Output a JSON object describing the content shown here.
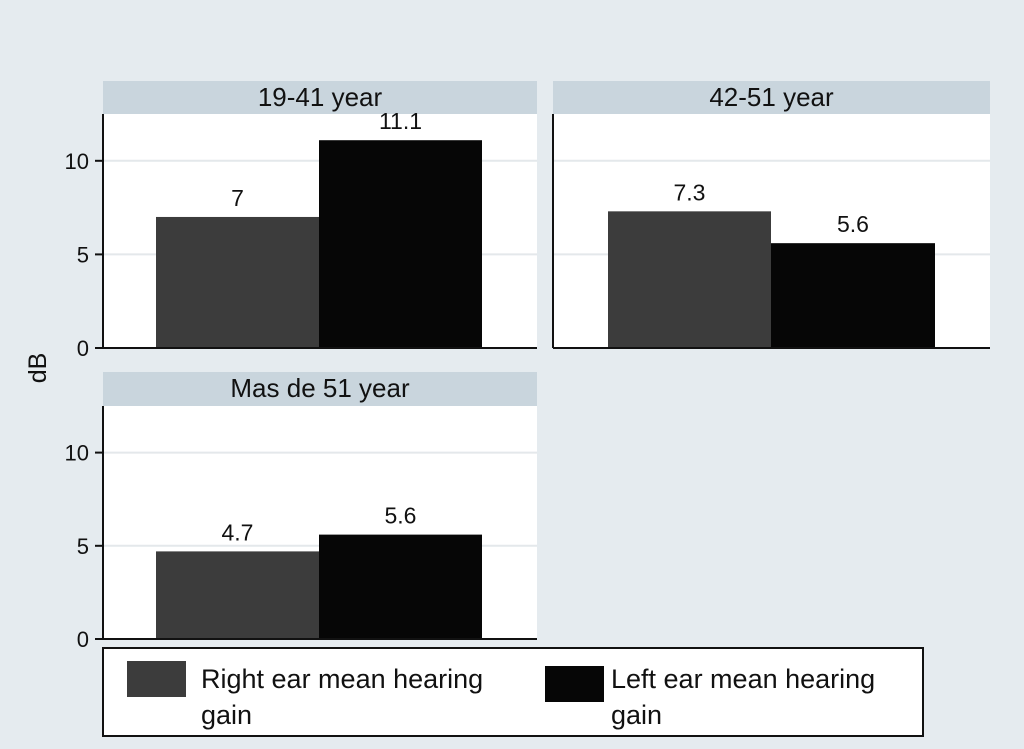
{
  "chart_data": {
    "type": "bar",
    "ylabel": "dB",
    "ylim": [
      0,
      12.5
    ],
    "yticks": [
      0,
      5,
      10
    ],
    "grid": true,
    "legend_position": "bottom",
    "series": [
      {
        "name": "Right ear mean hearing gain",
        "color": "#3c3c3c"
      },
      {
        "name": "Left ear mean hearing gain",
        "color": "#060606"
      }
    ],
    "panels": [
      {
        "title": "19-41 year",
        "values": [
          7,
          11.1
        ],
        "labels": [
          "7",
          "11.1"
        ]
      },
      {
        "title": "42-51 year",
        "values": [
          7.3,
          5.6
        ],
        "labels": [
          "7.3",
          "5.6"
        ]
      },
      {
        "title": "Mas de 51 year",
        "values": [
          4.7,
          5.6
        ],
        "labels": [
          "4.7",
          "5.6"
        ]
      }
    ]
  },
  "colors": {
    "background": "#e5ebef",
    "strip": "#c9d5dd",
    "plot": "#ffffff",
    "grid": "#e4e8eb"
  }
}
